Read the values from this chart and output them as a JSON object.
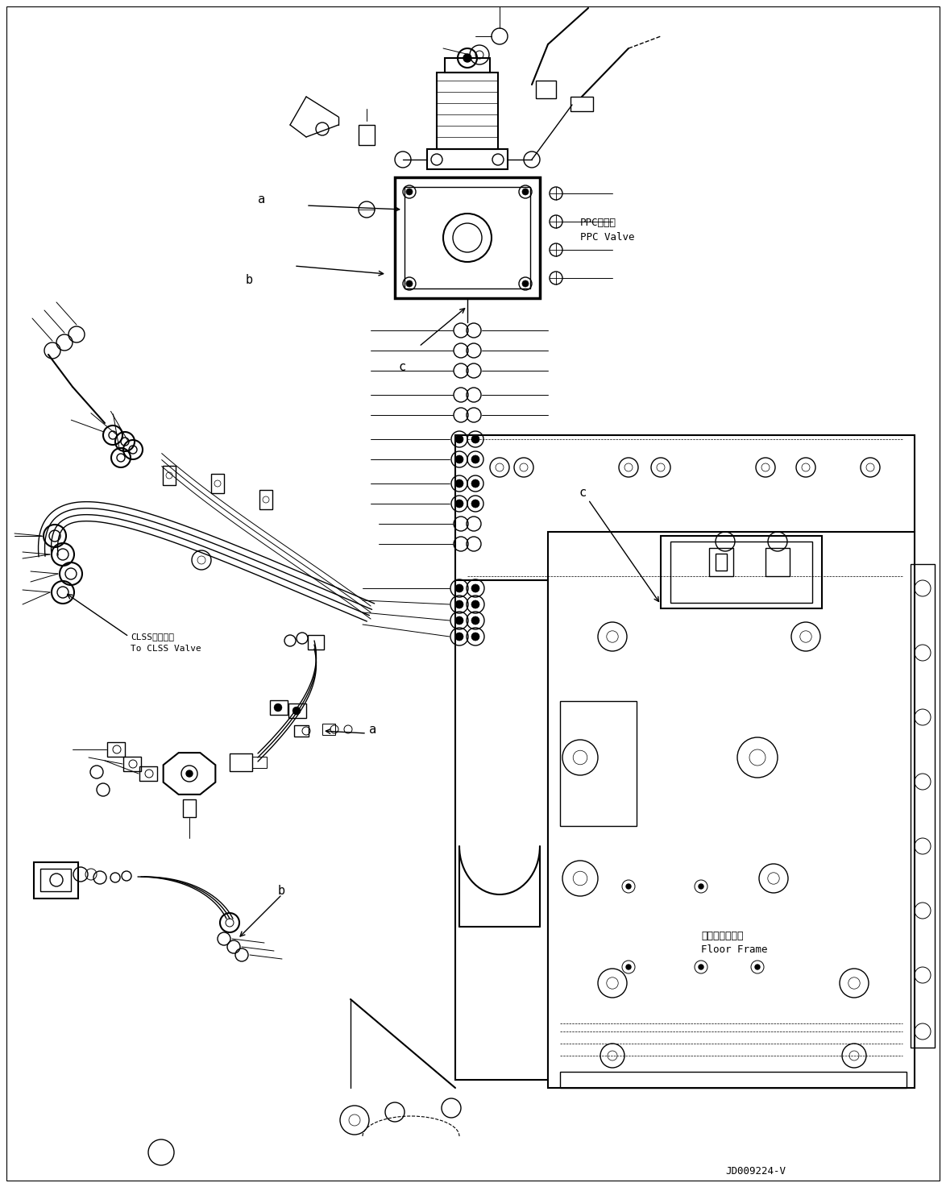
{
  "background_color": "#ffffff",
  "line_color": "#000000",
  "figsize": [
    11.74,
    14.73
  ],
  "dpi": 100,
  "labels": {
    "ppc_valve_jp": "PPCバルブ",
    "ppc_valve_en": "PPC Valve",
    "clss_valve_jp": "CLSSバルブへ",
    "clss_valve_en": "To CLSS Valve",
    "floor_frame_jp": "フロアフレーム",
    "floor_frame_en": "Floor Frame",
    "part_number": "JD009224-V",
    "label_a1": "a",
    "label_b1": "b",
    "label_c1": "c",
    "label_a2": "a",
    "label_b2": "b",
    "label_c2": "c"
  }
}
